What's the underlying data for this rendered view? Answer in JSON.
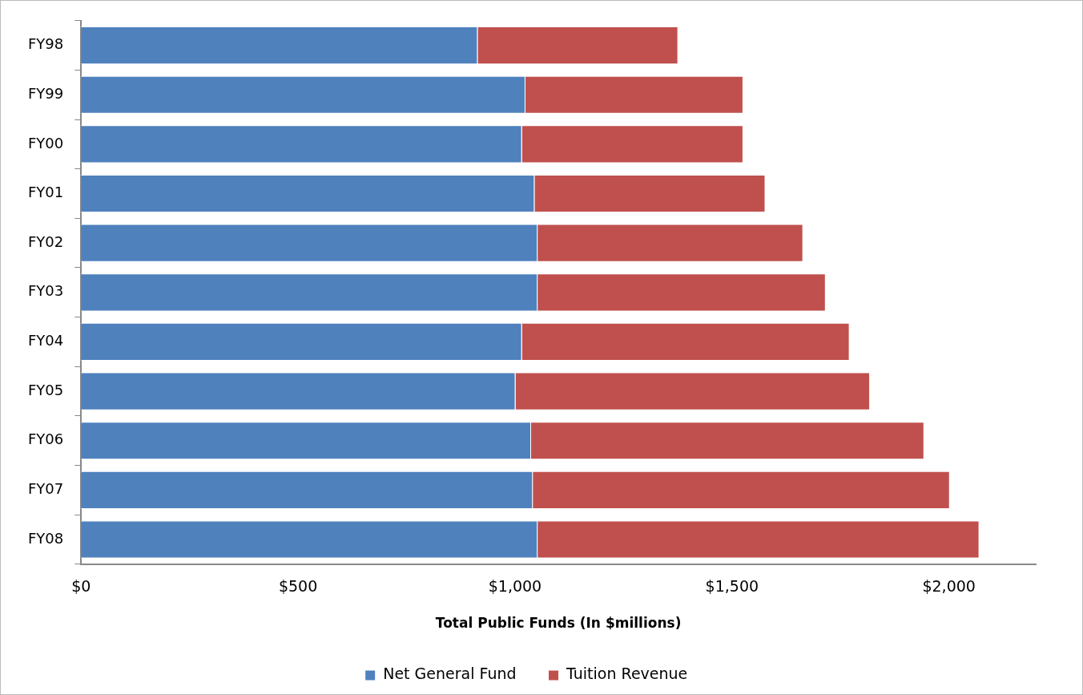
{
  "chart_data": {
    "type": "bar",
    "orientation": "horizontal",
    "stacked": true,
    "xlabel": "Total Public Funds (In $millions)",
    "categories": [
      "FY98",
      "FY99",
      "FY00",
      "FY01",
      "FY02",
      "FY03",
      "FY04",
      "FY05",
      "FY06",
      "FY07",
      "FY08"
    ],
    "series": [
      {
        "name": "Net General Fund",
        "color": "#4f81bd",
        "values": [
          914,
          1024,
          1016,
          1045,
          1052,
          1052,
          1016,
          1001,
          1037,
          1041,
          1052
        ]
      },
      {
        "name": "Tuition Revenue",
        "color": "#c0504d",
        "values": [
          462,
          502,
          510,
          532,
          612,
          664,
          755,
          817,
          906,
          961,
          1018
        ]
      }
    ],
    "xlim": [
      0,
      2200
    ],
    "xticks": [
      {
        "value": 0,
        "label": "$0"
      },
      {
        "value": 500,
        "label": "$500"
      },
      {
        "value": 1000,
        "label": "$1,000"
      },
      {
        "value": 1500,
        "label": "$1,500"
      },
      {
        "value": 2000,
        "label": "$2,000"
      }
    ],
    "grid": false,
    "legend": "bottom"
  }
}
